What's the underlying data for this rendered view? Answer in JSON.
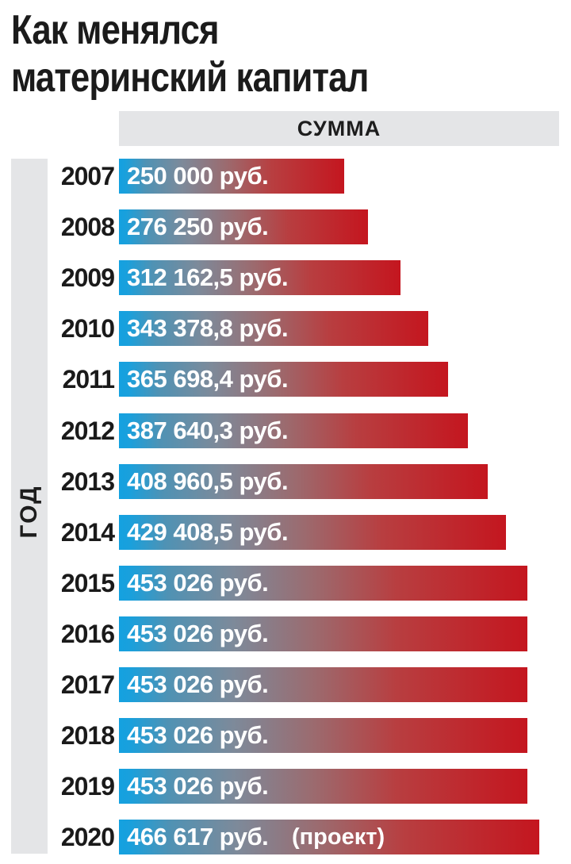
{
  "title_line1": "Как менялся",
  "title_line2": "материнский капитал",
  "column_header": "СУММА",
  "y_axis_label": "ГОД",
  "colors": {
    "bar_start": "#14a1e0",
    "bar_end": "#c4161f",
    "strip": "#e4e5e7"
  },
  "chart_data": {
    "type": "bar",
    "orientation": "horizontal",
    "title": "Как менялся материнский капитал",
    "xlabel": "СУММА",
    "ylabel": "ГОД",
    "grid": false,
    "categories": [
      "2007",
      "2008",
      "2009",
      "2010",
      "2011",
      "2012",
      "2013",
      "2014",
      "2015",
      "2016",
      "2017",
      "2018",
      "2019",
      "2020"
    ],
    "values": [
      250000,
      276250,
      312162.5,
      343378.8,
      365698.4,
      387640.3,
      408960.5,
      429408.5,
      453026,
      453026,
      453026,
      453026,
      453026,
      466617
    ],
    "labels": [
      "250 000 руб.",
      "276 250 руб.",
      "312 162,5 руб.",
      "343 378,8 руб.",
      "365 698,4 руб.",
      "387 640,3 руб.",
      "408 960,5 руб.",
      "429 408,5 руб.",
      "453 026 руб.",
      "453 026 руб.",
      "453 026 руб.",
      "453 026 руб.",
      "453 026 руб.",
      "466 617 руб."
    ],
    "annotations": [
      {
        "category": "2020",
        "text": "(проект)"
      }
    ]
  }
}
